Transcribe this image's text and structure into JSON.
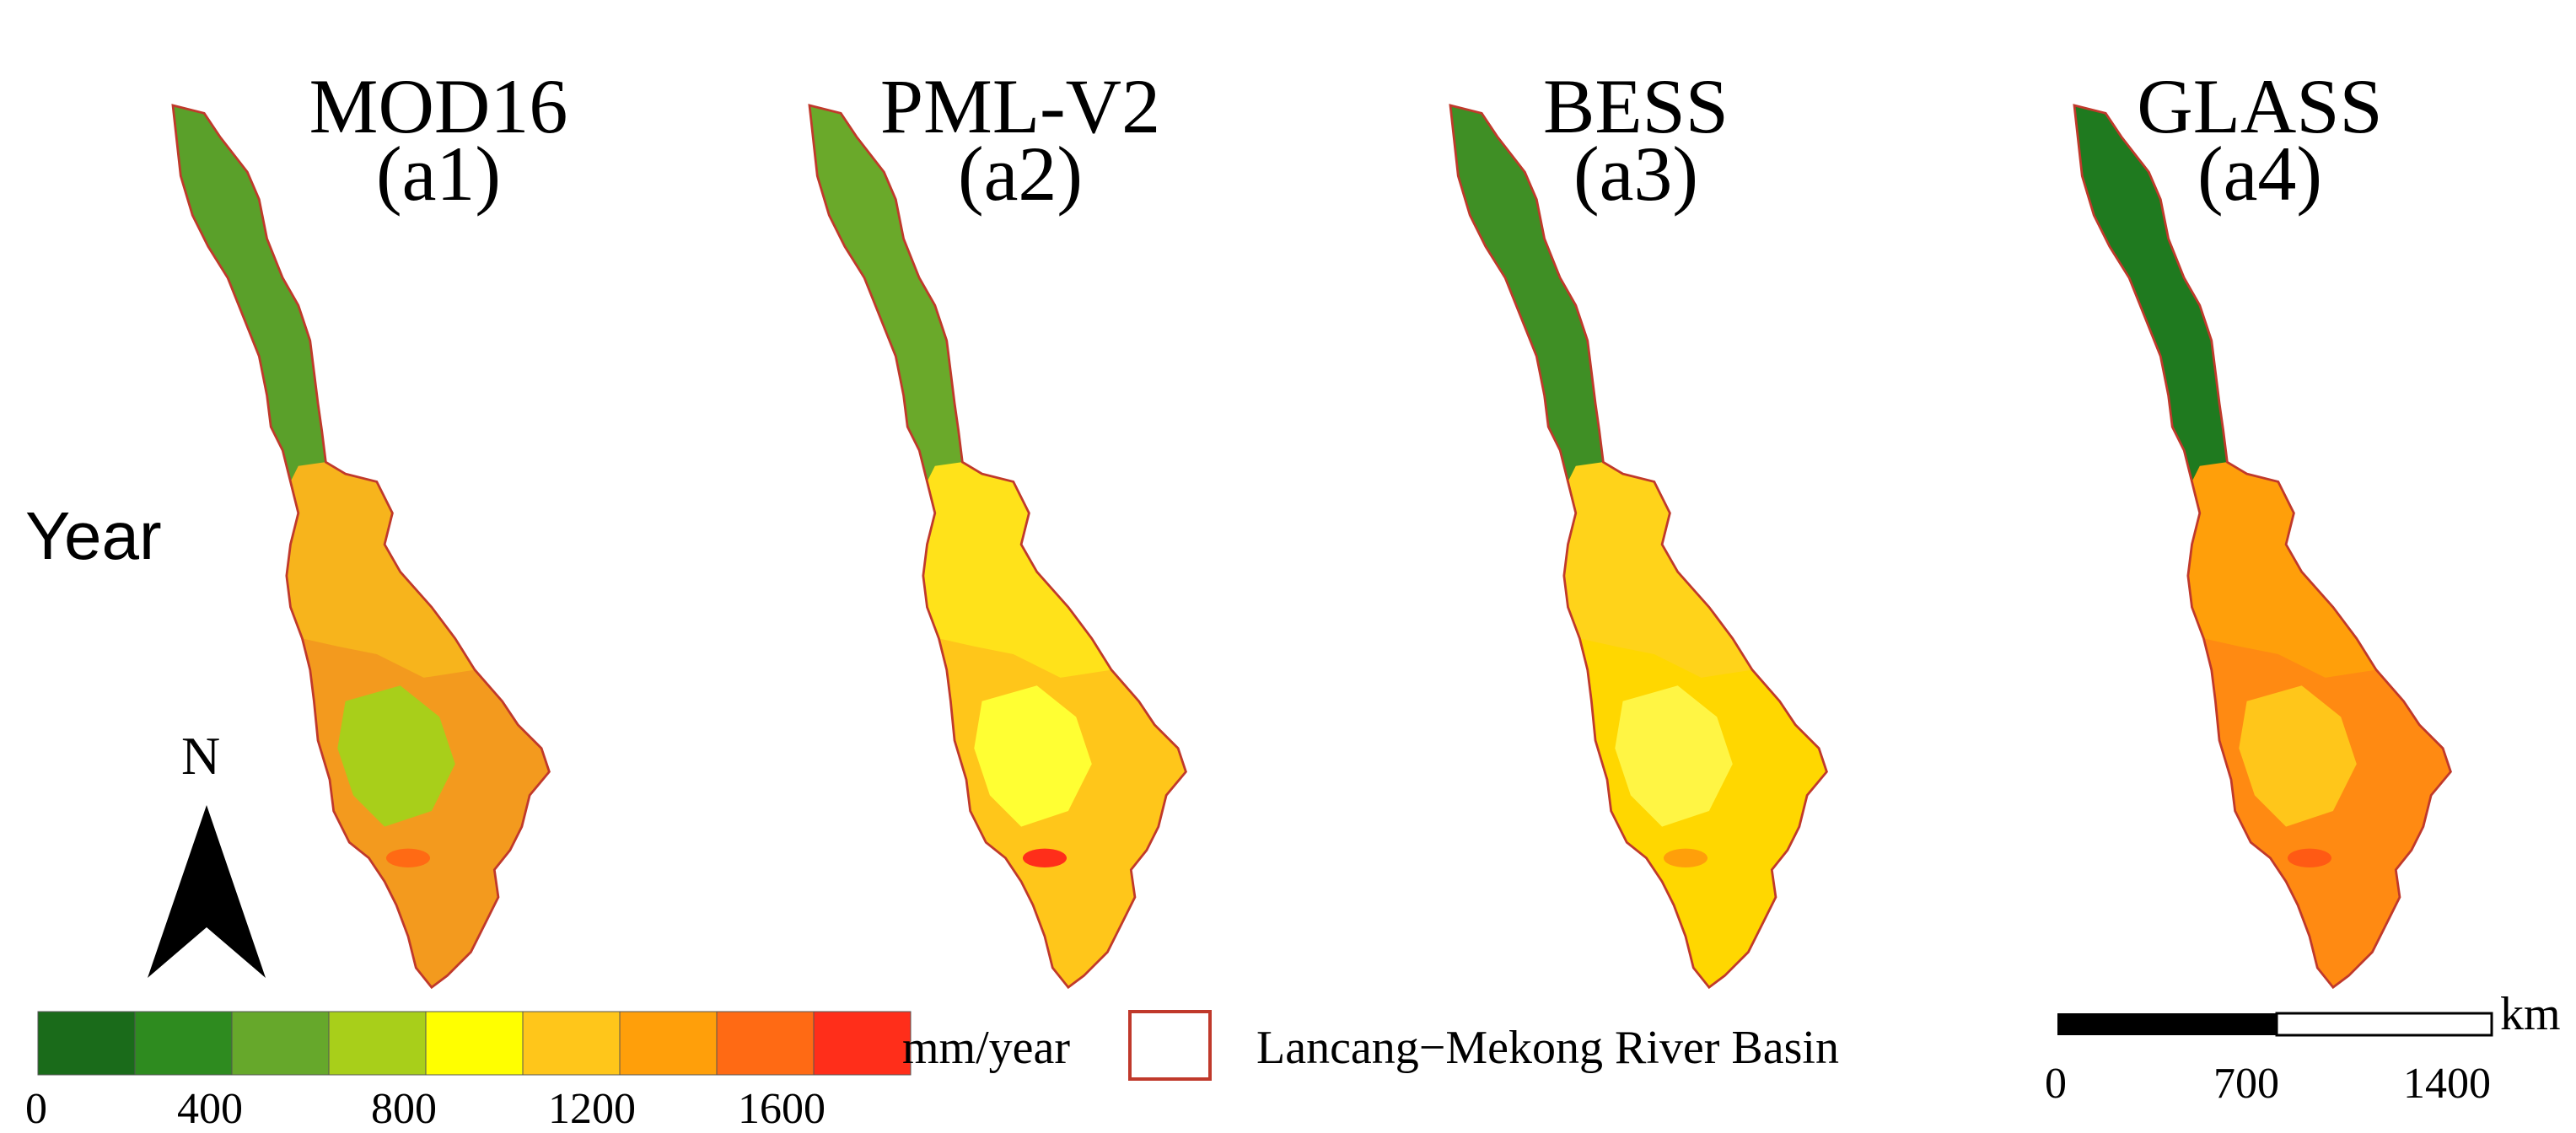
{
  "row_label": "Year",
  "panels": [
    {
      "title": "MOD16",
      "label": "(a1)"
    },
    {
      "title": "PML-V2",
      "label": "(a2)"
    },
    {
      "title": "BESS",
      "label": "(a3)"
    },
    {
      "title": "GLASS",
      "label": "(a4)"
    }
  ],
  "north_arrow": {
    "label": "N"
  },
  "colorbar": {
    "classes": [
      {
        "range": [
          0,
          200
        ],
        "color": "#1a6b1a"
      },
      {
        "range": [
          200,
          400
        ],
        "color": "#2e8b1f"
      },
      {
        "range": [
          400,
          600
        ],
        "color": "#66a82b"
      },
      {
        "range": [
          600,
          800
        ],
        "color": "#a8cf1a"
      },
      {
        "range": [
          800,
          1000
        ],
        "color": "#ffff00"
      },
      {
        "range": [
          1000,
          1200
        ],
        "color": "#ffc61a"
      },
      {
        "range": [
          1200,
          1400
        ],
        "color": "#ff9f0a"
      },
      {
        "range": [
          1400,
          1600
        ],
        "color": "#ff6a14"
      },
      {
        "range": [
          1600,
          1800
        ],
        "color": "#ff2e1a"
      }
    ],
    "tick_labels": [
      "0",
      "400",
      "800",
      "1200",
      "1600"
    ],
    "unit": "mm/year"
  },
  "legend": {
    "boundary_label": "Lancang−Mekong River Basin",
    "boundary_color": "#c0392b"
  },
  "scale_bar": {
    "ticks": [
      "0",
      "700",
      "1400"
    ],
    "unit": "km"
  },
  "panel_fills": [
    {
      "north": "#5aa02a",
      "mid": "#f7b41c",
      "south": "#f39a1e",
      "patch": "#a8cf1a",
      "accent": "#ff6a14"
    },
    {
      "north": "#6aa92a",
      "mid": "#ffe21a",
      "south": "#ffc61a",
      "patch": "#ffff33",
      "accent": "#ff2e1a"
    },
    {
      "north": "#3f8f25",
      "mid": "#ffd31a",
      "south": "#ffd700",
      "patch": "#fff544",
      "accent": "#ff9f0a"
    },
    {
      "north": "#1f7a1f",
      "mid": "#ff9f0a",
      "south": "#ff8a12",
      "patch": "#ffc61a",
      "accent": "#ff5a14"
    }
  ]
}
